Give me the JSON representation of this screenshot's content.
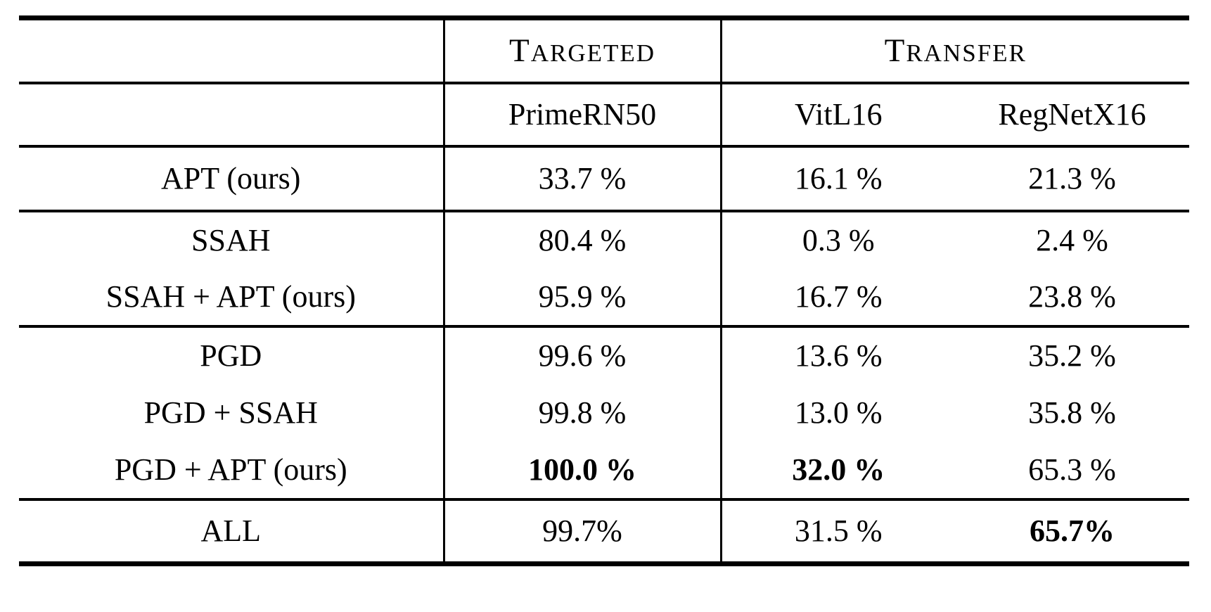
{
  "table": {
    "header": {
      "corner": "",
      "groups": [
        {
          "label": "TARGETED"
        },
        {
          "label": "TRANSFER"
        }
      ],
      "models": [
        "PrimeRN50",
        "VitL16",
        "RegNetX16"
      ]
    },
    "rows": [
      {
        "label": "APT (ours)",
        "targeted": "33.7 %",
        "vitl16": "16.1 %",
        "regnetx16": "21.3 %",
        "bold": []
      },
      {
        "label": "SSAH",
        "targeted": "80.4 %",
        "vitl16": "0.3 %",
        "regnetx16": "2.4 %",
        "bold": []
      },
      {
        "label": "SSAH + APT (ours)",
        "targeted": "95.9 %",
        "vitl16": "16.7 %",
        "regnetx16": "23.8 %",
        "bold": []
      },
      {
        "label": "PGD",
        "targeted": "99.6 %",
        "vitl16": "13.6 %",
        "regnetx16": "35.2 %",
        "bold": []
      },
      {
        "label": "PGD + SSAH",
        "targeted": "99.8 %",
        "vitl16": "13.0 %",
        "regnetx16": "35.8 %",
        "bold": []
      },
      {
        "label": "PGD + APT (ours)",
        "targeted": "100.0 %",
        "vitl16": "32.0 %",
        "regnetx16": "65.3 %",
        "bold": [
          "targeted",
          "vitl16"
        ]
      },
      {
        "label": "ALL",
        "targeted": "99.7%",
        "vitl16": "31.5 %",
        "regnetx16": "65.7%",
        "bold": [
          "regnetx16"
        ]
      }
    ],
    "colors": {
      "text": "#000000",
      "rules": "#000000",
      "background": "#ffffff"
    }
  }
}
